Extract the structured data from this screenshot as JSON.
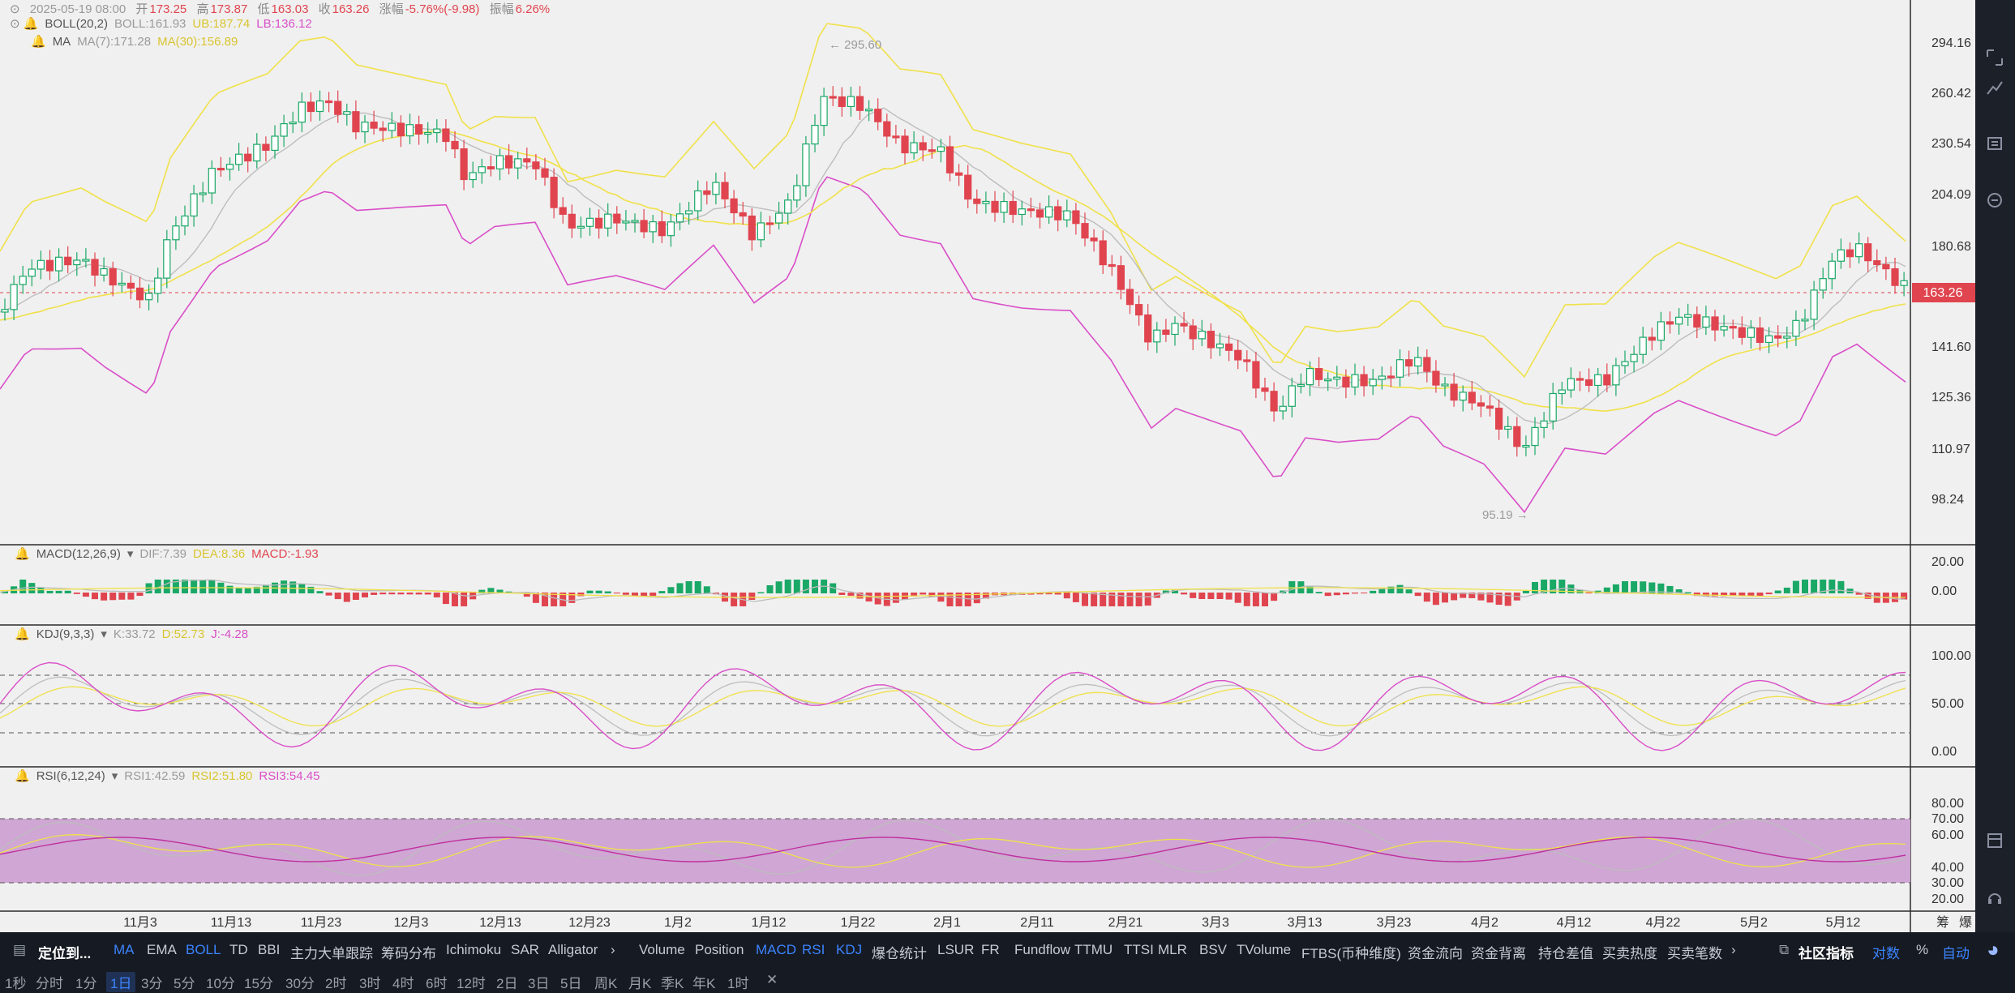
{
  "header": {
    "datetime": "2025-05-19 08:00",
    "open_label": "开",
    "open": "173.25",
    "high_label": "高",
    "high": "173.87",
    "low_label": "低",
    "low": "163.03",
    "close_label": "收",
    "close": "163.26",
    "change_label": "涨幅",
    "change": "-5.76%(-9.98)",
    "amp_label": "振幅",
    "amp": "6.26%"
  },
  "boll": {
    "name": "BOLL(20,2)",
    "boll": "BOLL:161.93",
    "ub": "UB:187.74",
    "lb": "LB:136.12"
  },
  "ma": {
    "name": "MA",
    "ma7": "MA(7):171.28",
    "ma30": "MA(30):156.89"
  },
  "macd": {
    "name": "MACD(12,26,9)",
    "dif": "DIF:7.39",
    "dea": "DEA:8.36",
    "macd": "MACD:-1.93"
  },
  "kdj": {
    "name": "KDJ(9,3,3)",
    "k": "K:33.72",
    "d": "D:52.73",
    "j": "J:-4.28"
  },
  "rsi": {
    "name": "RSI(6,12,24)",
    "rsi1": "RSI1:42.59",
    "rsi2": "RSI2:51.80",
    "rsi3": "RSI3:54.45"
  },
  "price_axis": [
    "294.16",
    "260.42",
    "230.54",
    "204.09",
    "180.68",
    "141.60",
    "125.36",
    "110.97",
    "98.24"
  ],
  "current_price": "163.26",
  "high_marker": "295.60",
  "low_marker": "95.19",
  "macd_axis": [
    "20.00",
    "0.00"
  ],
  "kdj_axis": [
    "100.00",
    "50.00",
    "0.00"
  ],
  "rsi_axis": [
    "80.00",
    "70.00",
    "60.00",
    "40.00",
    "30.00",
    "20.00"
  ],
  "x_axis": [
    "11月3",
    "11月13",
    "11月23",
    "12月3",
    "12月13",
    "12月23",
    "1月2",
    "1月12",
    "1月22",
    "2月1",
    "2月11",
    "2月21",
    "3月3",
    "3月13",
    "3月23",
    "4月2",
    "4月12",
    "4月22",
    "5月2",
    "5月12"
  ],
  "x_axis_right": [
    "筹",
    "爆"
  ],
  "toolbar": {
    "locate": "定位到...",
    "indicators": [
      "MA",
      "EMA",
      "BOLL",
      "TD",
      "BBI",
      "主力大单跟踪",
      "筹码分布",
      "Ichimoku",
      "SAR",
      "Alligator"
    ],
    "sub_indicators": [
      "Volume",
      "Position",
      "MACD",
      "RSI",
      "KDJ",
      "爆仓统计",
      "LSUR",
      "FR",
      "Fundflow",
      "TTMU",
      "TTSI",
      "MLR",
      "BSV",
      "TVolume",
      "FTBS(币种维度)",
      "资金流向",
      "资金背离",
      "持仓差值",
      "买卖热度",
      "买卖笔数"
    ],
    "community": "社区指标",
    "log": "对数",
    "pct": "%",
    "auto": "自动"
  },
  "intervals": [
    "1秒",
    "分时",
    "1分",
    "1日",
    "3分",
    "5分",
    "10分",
    "15分",
    "30分",
    "2时",
    "3时",
    "4时",
    "6时",
    "12时",
    "2日",
    "3日",
    "5日",
    "周K",
    "月K",
    "季K",
    "年K",
    "1时"
  ],
  "active_interval": "1日",
  "colors": {
    "up": "#1aa866",
    "down": "#e0454f",
    "ub_lb": "#f0e14a",
    "lb": "#d94fc8",
    "ma7": "#bdbdbd",
    "rsi_band": "#cfa6d4",
    "accent": "#3c84ff"
  }
}
